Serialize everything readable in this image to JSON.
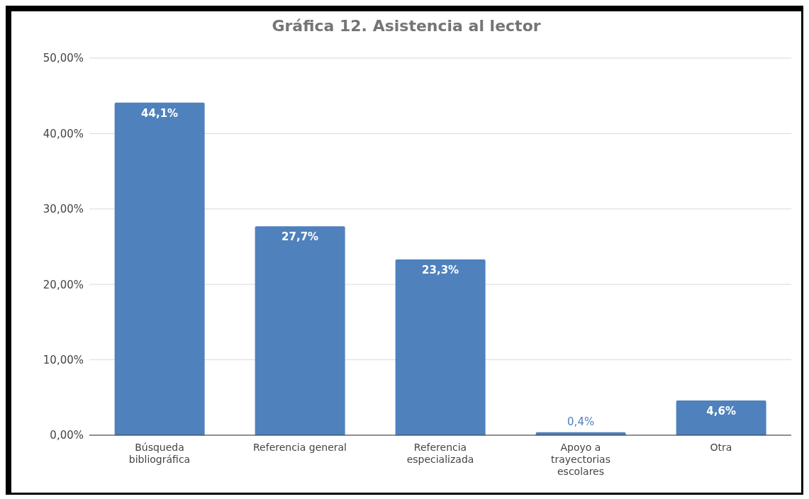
{
  "chart_data": {
    "type": "bar",
    "title": "Gráfica 12. Asistencia al lector",
    "categories": [
      "Búsqueda bibliográfica",
      "Referencia general",
      "Referencia especializada",
      "Apoyo a trayectorias escolares",
      "Otra"
    ],
    "values": [
      44.1,
      27.7,
      23.3,
      0.4,
      4.6
    ],
    "value_labels": [
      "44,1%",
      "27,7%",
      "23,3%",
      "0,4%",
      "4,6%"
    ],
    "color": "#4f81bd",
    "ylim": [
      0,
      50
    ],
    "yticks": [
      {
        "value": 0,
        "label": "0,00%"
      },
      {
        "value": 10,
        "label": "10,00%"
      },
      {
        "value": 20,
        "label": "20,00%"
      },
      {
        "value": 30,
        "label": "30,00%"
      },
      {
        "value": 40,
        "label": "40,00%"
      },
      {
        "value": 50,
        "label": "50,00%"
      }
    ],
    "grid": "y"
  }
}
